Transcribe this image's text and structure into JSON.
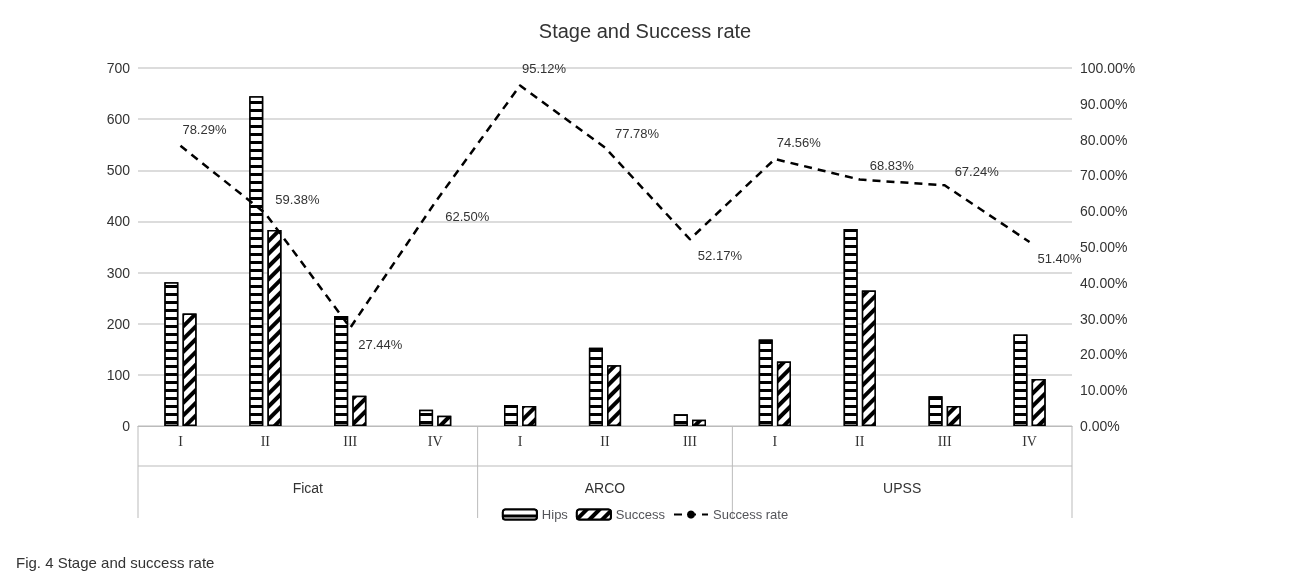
{
  "chart_data": {
    "type": "bar",
    "title": "Stage and Success rate",
    "categories": [
      "I",
      "II",
      "III",
      "IV",
      "I",
      "II",
      "III",
      "I",
      "II",
      "III",
      "IV"
    ],
    "series": [
      {
        "name": "Hips",
        "color": "#000000",
        "values": [
          281,
          645,
          215,
          32,
          41,
          153,
          23,
          169,
          385,
          58,
          179
        ]
      },
      {
        "name": "Success",
        "color": "#000000",
        "values": [
          220,
          383,
          59,
          20,
          39,
          119,
          12,
          126,
          265,
          39,
          92
        ]
      },
      {
        "name": "Success rate",
        "type": "line",
        "axis": "y2",
        "color": "#000000",
        "line_style": "dashed",
        "marker": "none",
        "values": [
          78.29,
          59.38,
          27.44,
          62.5,
          95.12,
          77.78,
          52.17,
          74.56,
          68.83,
          67.24,
          51.4
        ],
        "value_labels": [
          "78.29%",
          "59.38%",
          "27.44%",
          "62.50%",
          "95.12%",
          "77.78%",
          "52.17%",
          "74.56%",
          "68.83%",
          "67.24%",
          "51.40%"
        ]
      }
    ],
    "ylim": [
      0,
      700
    ],
    "yticks": [
      0,
      100,
      200,
      300,
      400,
      500,
      600,
      700
    ],
    "y2lim": [
      0,
      100
    ],
    "y2ticks": [
      {
        "value": 0,
        "label": "0.00%"
      },
      {
        "value": 10,
        "label": "10.00%"
      },
      {
        "value": 20,
        "label": "20.00%"
      },
      {
        "value": 30,
        "label": "30.00%"
      },
      {
        "value": 40,
        "label": "40.00%"
      },
      {
        "value": 50,
        "label": "50.00%"
      },
      {
        "value": 60,
        "label": "60.00%"
      },
      {
        "value": 70,
        "label": "70.00%"
      },
      {
        "value": 80,
        "label": "80.00%"
      },
      {
        "value": 90,
        "label": "90.00%"
      },
      {
        "value": 100,
        "label": "100.00%"
      }
    ],
    "grid": "y",
    "legend": "bottom",
    "annotations": [
      "Ficat",
      "ARCO",
      "UPSS",
      "Fig. 4 Stage and success rate"
    ]
  }
}
